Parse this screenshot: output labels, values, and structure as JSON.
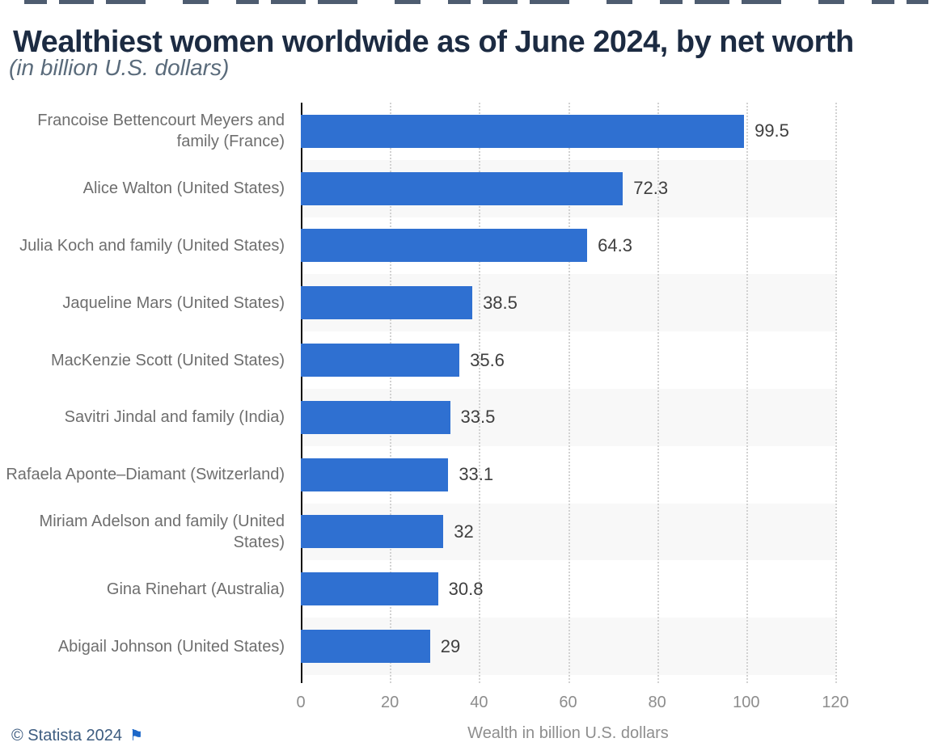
{
  "header": {
    "title": "Wealthiest women worldwide as of June 2024, by net worth",
    "subtitle": "(in billion U.S. dollars)"
  },
  "chart_data": {
    "type": "bar",
    "orientation": "horizontal",
    "title": "Wealthiest women worldwide as of June 2024, by net worth (in billion U.S. dollars)",
    "categories": [
      "Francoise Bettencourt Meyers and family (France)",
      "Alice Walton (United States)",
      "Julia Koch and family (United States)",
      "Jaqueline Mars (United States)",
      "MacKenzie Scott (United States)",
      "Savitri Jindal and family (India)",
      "Rafaela Aponte–Diamant (Switzerland)",
      "Miriam Adelson and family (United States)",
      "Gina Rinehart (Australia)",
      "Abigail Johnson (United States)"
    ],
    "values": [
      99.5,
      72.3,
      64.3,
      38.5,
      35.6,
      33.5,
      33.1,
      32,
      30.8,
      29
    ],
    "value_labels": [
      "99.5",
      "72.3",
      "64.3",
      "38.5",
      "35.6",
      "33.5",
      "33.1",
      "32",
      "30.8",
      "29"
    ],
    "xlabel": "Wealth in billion U.S. dollars",
    "ylabel": "",
    "xlim": [
      0,
      120
    ],
    "x_ticks": [
      0,
      20,
      40,
      60,
      80,
      100,
      120
    ],
    "grid": "vertical dotted gridlines, zebra row bands on even rows",
    "legend": "none",
    "colors": {
      "bar": "#2f70d1",
      "row_band": "#f8f8f8",
      "gridline": "#d2d2d2",
      "axis_line": "#101010",
      "title_text": "#1c2b42",
      "footer_link": "#3d5c80",
      "flag": "#1c67c9"
    }
  },
  "footer": {
    "copyright": "© Statista 2024",
    "flag_icon": "flag"
  }
}
